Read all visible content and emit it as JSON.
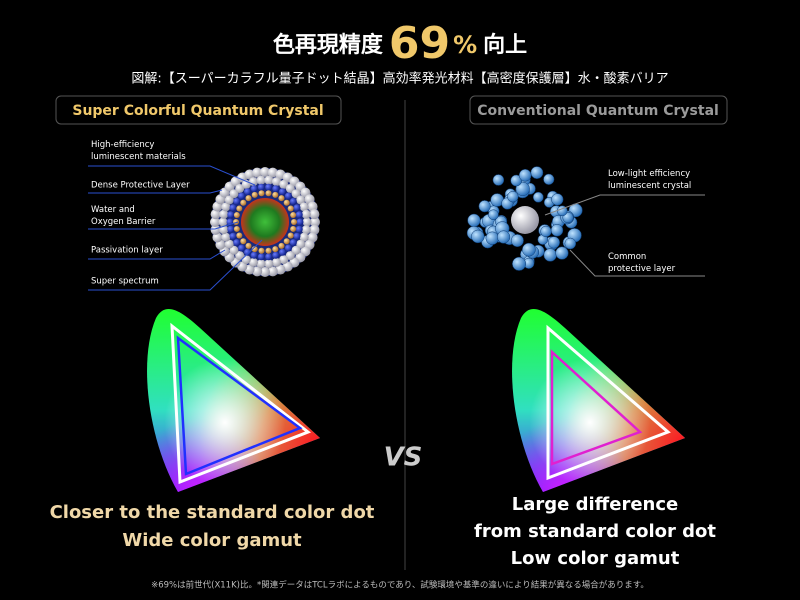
{
  "header": {
    "title_prefix": "色再現精度",
    "title_number": "69",
    "title_unit": "%",
    "title_suffix": "向上",
    "subtitle": "図解:【スーパーカラフル量子ドット結晶】高効率発光材料【高密度保護層】水・酸素バリア"
  },
  "left": {
    "label": "Super Colorful Quantum Crystal",
    "annotations": [
      {
        "lines": [
          "High-efficiency",
          "luminescent materials"
        ]
      },
      {
        "lines": [
          "Dense Protective Layer"
        ]
      },
      {
        "lines": [
          "Water and",
          "Oxygen Barrier"
        ]
      },
      {
        "lines": [
          "Passivation layer"
        ]
      },
      {
        "lines": [
          "Super spectrum"
        ]
      }
    ],
    "caption": [
      "Closer to the standard color dot",
      "Wide color gamut"
    ]
  },
  "right": {
    "label": "Conventional Quantum Crystal",
    "annotations": [
      {
        "lines": [
          "Low-light efficiency",
          "luminescent crystal"
        ]
      },
      {
        "lines": [
          "Common",
          "protective layer"
        ]
      }
    ],
    "caption": [
      "Large difference",
      "from standard color dot",
      "Low color gamut"
    ]
  },
  "vs": "VS",
  "footnote": "※69%は前世代(X11K)比。*関連データはTCLラボによるものであり、試験環境や基準の違いにより結果が異なる場合があります。"
}
